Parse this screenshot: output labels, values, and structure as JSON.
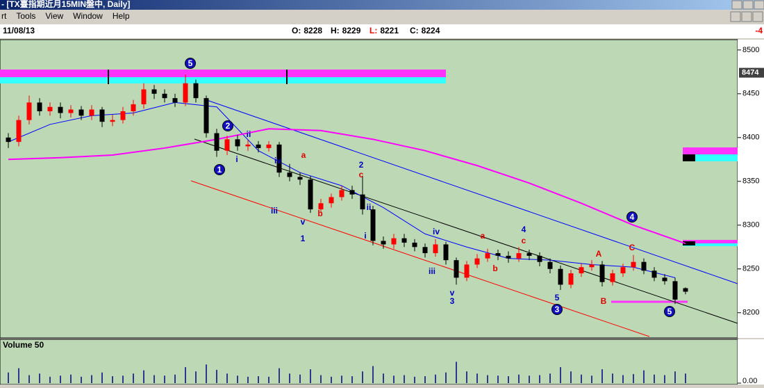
{
  "window": {
    "title": "- [TX臺指期近月15MIN盤中, Daily]",
    "menu": [
      "rt",
      "Tools",
      "View",
      "Window",
      "Help"
    ]
  },
  "info": {
    "date": "11/08/13",
    "fields": [
      {
        "label": "O:",
        "value": 8228
      },
      {
        "label": "H:",
        "value": 8229
      },
      {
        "label": "L:",
        "value": 8221
      },
      {
        "label": "C:",
        "value": 8224
      }
    ],
    "change": -4
  },
  "chart_data": {
    "type": "candlestick",
    "open": [
      8400,
      8395,
      8420,
      8440,
      8430,
      8435,
      8428,
      8432,
      8425,
      8432,
      8418,
      8420,
      8430,
      8438,
      8455,
      8450,
      8445,
      8440,
      8462,
      8445,
      8405,
      8385,
      8398,
      8390,
      8392,
      8388,
      8392,
      8360,
      8355,
      8352,
      8318,
      8325,
      8332,
      8340,
      8335,
      8318,
      8282,
      8278,
      8285,
      8280,
      8275,
      8268,
      8278,
      8260,
      8240,
      8255,
      8262,
      8268,
      8265,
      8262,
      8268,
      8265,
      8258,
      8250,
      8232,
      8245,
      8252,
      8255,
      8235,
      8245,
      8252,
      8258,
      8248,
      8240,
      8236,
      8228
    ],
    "high": [
      8405,
      8425,
      8448,
      8445,
      8440,
      8440,
      8437,
      8436,
      8437,
      8435,
      8426,
      8435,
      8443,
      8462,
      8460,
      8455,
      8450,
      8472,
      8466,
      8448,
      8410,
      8402,
      8403,
      8397,
      8396,
      8396,
      8395,
      8370,
      8360,
      8356,
      8330,
      8336,
      8345,
      8345,
      8356,
      8322,
      8287,
      8290,
      8290,
      8284,
      8279,
      8284,
      8281,
      8263,
      8259,
      8267,
      8273,
      8272,
      8270,
      8275,
      8272,
      8269,
      8262,
      8254,
      8249,
      8256,
      8260,
      8259,
      8249,
      8256,
      8266,
      8262,
      8252,
      8244,
      8240,
      8229
    ],
    "low": [
      8388,
      8390,
      8415,
      8425,
      8425,
      8422,
      8423,
      8420,
      8420,
      8412,
      8413,
      8416,
      8425,
      8433,
      8444,
      8440,
      8435,
      8436,
      8440,
      8400,
      8378,
      8380,
      8385,
      8385,
      8383,
      8384,
      8355,
      8350,
      8346,
      8314,
      8314,
      8320,
      8328,
      8330,
      8312,
      8277,
      8273,
      8273,
      8275,
      8270,
      8263,
      8264,
      8255,
      8232,
      8236,
      8251,
      8258,
      8260,
      8257,
      8258,
      8260,
      8253,
      8245,
      8226,
      8228,
      8241,
      8248,
      8230,
      8231,
      8241,
      8248,
      8244,
      8236,
      8232,
      8210,
      8221
    ],
    "close": [
      8395,
      8420,
      8440,
      8430,
      8435,
      8428,
      8432,
      8425,
      8432,
      8418,
      8420,
      8430,
      8438,
      8455,
      8450,
      8445,
      8440,
      8462,
      8445,
      8405,
      8385,
      8398,
      8390,
      8392,
      8388,
      8392,
      8360,
      8355,
      8352,
      8318,
      8325,
      8332,
      8340,
      8335,
      8318,
      8282,
      8278,
      8285,
      8280,
      8275,
      8268,
      8278,
      8260,
      8240,
      8255,
      8262,
      8268,
      8265,
      8262,
      8268,
      8265,
      8258,
      8250,
      8232,
      8245,
      8252,
      8255,
      8235,
      8245,
      8252,
      8258,
      8248,
      8240,
      8236,
      8215,
      8224
    ],
    "up_color": "#ff0000",
    "down_color": "#000000",
    "series": [
      {
        "color": "#0000ff",
        "x": [
          0,
          4,
          8,
          12,
          16,
          20,
          24,
          28,
          32,
          36,
          40,
          44,
          48,
          52,
          56,
          60,
          64
        ],
        "values": [
          8395,
          8415,
          8425,
          8428,
          8440,
          8435,
          8385,
          8360,
          8345,
          8320,
          8290,
          8275,
          8262,
          8260,
          8255,
          8252,
          8240
        ]
      },
      {
        "color": "#ff00ff",
        "x": [
          0,
          5,
          10,
          15,
          20,
          25,
          30,
          35,
          40,
          45,
          50,
          55,
          60,
          65
        ],
        "values": [
          8375,
          8377,
          8380,
          8388,
          8398,
          8410,
          8408,
          8398,
          8385,
          8368,
          8348,
          8325,
          8300,
          8279
        ]
      }
    ],
    "ylim": [
      8172,
      8511
    ],
    "yticks": [
      8200,
      8250,
      8300,
      8350,
      8400,
      8450,
      8500
    ],
    "marker_price": 8474,
    "wave_labels": [
      "5",
      "1",
      "2",
      "ii",
      "i",
      "iv",
      "a",
      "iii",
      "v",
      "1",
      "b",
      "2",
      "c",
      "ii",
      "i",
      "iv",
      "iii",
      "v",
      "3",
      "a",
      "b",
      "4",
      "c",
      "5",
      "3",
      "A",
      "B",
      "4",
      "C",
      "5"
    ],
    "volume": {
      "title": "Volume 50",
      "color": "#000080",
      "ylim": [
        0,
        60
      ],
      "yticks": [
        {
          "value": 0,
          "label": "0.00"
        }
      ],
      "values": [
        20,
        28,
        15,
        18,
        12,
        14,
        16,
        12,
        15,
        20,
        13,
        14,
        18,
        24,
        15,
        14,
        16,
        30,
        22,
        35,
        25,
        18,
        14,
        12,
        13,
        12,
        28,
        18,
        16,
        26,
        15,
        12,
        14,
        13,
        22,
        32,
        18,
        14,
        15,
        12,
        13,
        16,
        20,
        40,
        22,
        18,
        15,
        14,
        13,
        16,
        14,
        15,
        18,
        30,
        22,
        16,
        14,
        26,
        18,
        15,
        17,
        24,
        16,
        15,
        22,
        18
      ]
    }
  }
}
